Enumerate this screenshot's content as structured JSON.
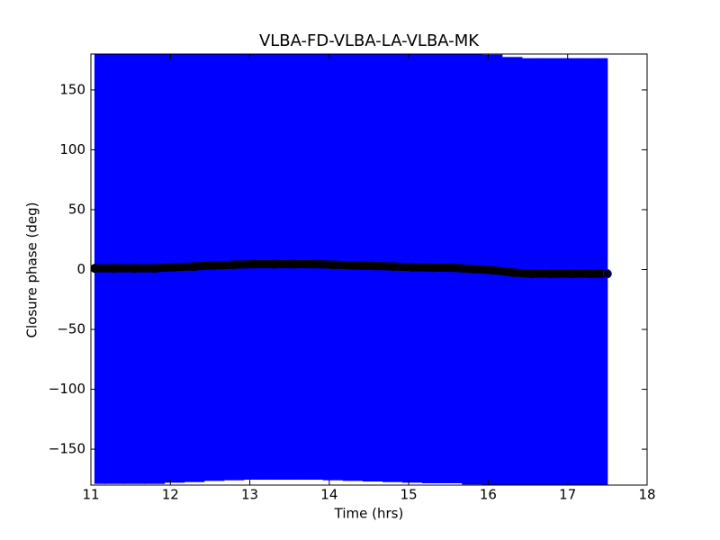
{
  "chart_data": {
    "type": "errorbar",
    "title": "VLBA-FD-VLBA-LA-VLBA-MK",
    "x_label": "Time (hrs)",
    "y_label": "Closure phase (deg)",
    "xlim": [
      11,
      18
    ],
    "ylim": [
      -180,
      180
    ],
    "xticks": [
      11,
      12,
      13,
      14,
      15,
      16,
      17,
      18
    ],
    "yticks": [
      {
        "value": -150,
        "label": "−150"
      },
      {
        "value": -100,
        "label": "−100"
      },
      {
        "value": -50,
        "label": "−50"
      },
      0,
      50,
      100,
      150
    ],
    "series": [
      {
        "color": "#0000ff",
        "marker_color": "#000000",
        "x": [
          11.05,
          11.3,
          11.55,
          11.8,
          12.05,
          12.3,
          12.55,
          12.8,
          13.05,
          13.3,
          13.55,
          13.8,
          14.05,
          14.3,
          14.55,
          14.8,
          15.05,
          15.3,
          15.55,
          15.8,
          16.05,
          16.3,
          16.55,
          16.8,
          17.05,
          17.3,
          17.5
        ],
        "values": [
          1,
          1,
          1,
          1,
          2,
          2.5,
          3.5,
          4,
          4.5,
          4.5,
          4.5,
          4.5,
          4,
          3.5,
          3,
          2.5,
          2,
          1.5,
          1.5,
          0.5,
          -0.5,
          -2.5,
          -3.5,
          -3.5,
          -3.5,
          -3.5,
          -3.5
        ],
        "errors": [
          180,
          180,
          180,
          180,
          180,
          180,
          180,
          180,
          180,
          180,
          180,
          180,
          180,
          180,
          180,
          180,
          180,
          180,
          180,
          180,
          180,
          180,
          180,
          180,
          180,
          180,
          180
        ]
      }
    ]
  }
}
